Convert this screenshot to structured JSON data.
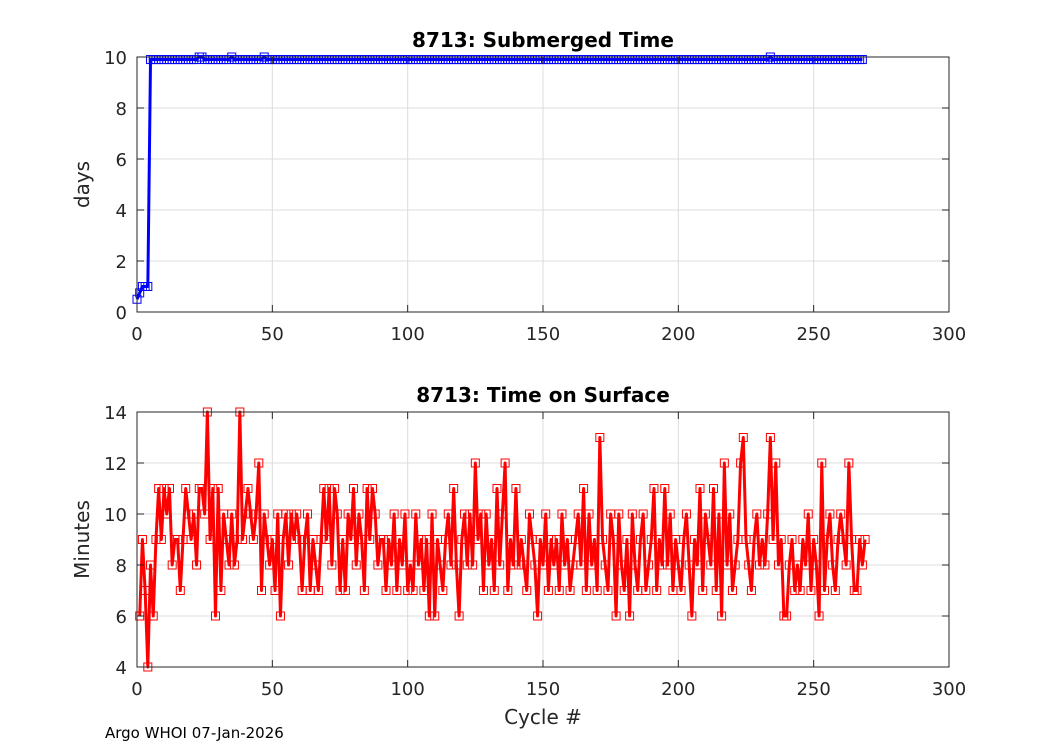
{
  "footer": "Argo WHOI 07-Jan-2026",
  "chart_data": [
    {
      "type": "line",
      "title": "8713: Submerged Time",
      "xlabel": "",
      "ylabel": "days",
      "xlim": [
        0,
        300
      ],
      "ylim": [
        0,
        10
      ],
      "xticks": [
        0,
        50,
        100,
        150,
        200,
        250,
        300
      ],
      "yticks": [
        0,
        2,
        4,
        6,
        8,
        10
      ],
      "grid": true,
      "color": "#0000ff",
      "marker": "square",
      "head_values": [
        0.5,
        0.75,
        1.0,
        1.0,
        1.0,
        9.9,
        9.9,
        9.9,
        9.9,
        9.9
      ],
      "tail_range": [
        10,
        268
      ],
      "tail_values": [
        9.9,
        9.9,
        9.9,
        9.9,
        9.9,
        9.9,
        9.9,
        9.9,
        9.9,
        9.9,
        9.9,
        9.9,
        9.9,
        10.0,
        10.0,
        9.9,
        9.9,
        9.9,
        9.9,
        9.9,
        9.9,
        9.9,
        9.9,
        9.9,
        9.9,
        10.0,
        9.9,
        9.9,
        9.9,
        9.9,
        9.9,
        9.9,
        9.9,
        9.9,
        9.9,
        9.9,
        9.9,
        10.0,
        9.9,
        9.9,
        9.9,
        9.9,
        9.9,
        9.9,
        9.9,
        9.9,
        9.9,
        9.9,
        9.9,
        9.9,
        9.9,
        9.9,
        9.9,
        9.9,
        9.9,
        9.9,
        9.9,
        9.9,
        9.9,
        9.9,
        9.9,
        9.9,
        9.9,
        9.9,
        9.9,
        9.9,
        9.9,
        9.9,
        9.9,
        9.9,
        9.9,
        9.9,
        9.9,
        9.9,
        9.9,
        9.9,
        9.9,
        9.9,
        9.9,
        9.9,
        9.9,
        9.9,
        9.9,
        9.9,
        9.9,
        9.9,
        9.9,
        9.9,
        9.9,
        9.9,
        9.9,
        9.9,
        9.9,
        9.9,
        9.9,
        9.9,
        9.9,
        9.9,
        9.9,
        9.9,
        9.9,
        9.9,
        9.9,
        9.9,
        9.9,
        9.9,
        9.9,
        9.9,
        9.9,
        9.9,
        9.9,
        9.9,
        9.9,
        9.9,
        9.9,
        9.9,
        9.9,
        9.9,
        9.9,
        9.9,
        9.9,
        9.9,
        9.9,
        9.9,
        9.9,
        9.9,
        9.9,
        9.9,
        9.9,
        9.9,
        9.9,
        9.9,
        9.9,
        9.9,
        9.9,
        9.9,
        9.9,
        9.9,
        9.9,
        9.9,
        9.9,
        9.9,
        9.9,
        9.9,
        9.9,
        9.9,
        9.9,
        9.9,
        9.9,
        9.9,
        9.9,
        9.9,
        9.9,
        9.9,
        9.9,
        9.9,
        9.9,
        9.9,
        9.9,
        9.9,
        9.9,
        9.9,
        9.9,
        9.9,
        9.9,
        9.9,
        9.9,
        9.9,
        9.9,
        9.9,
        9.9,
        9.9,
        9.9,
        9.9,
        9.9,
        9.9,
        9.9,
        9.9,
        9.9,
        9.9,
        9.9,
        9.9,
        9.9,
        9.9,
        9.9,
        9.9,
        9.9,
        9.9,
        9.9,
        9.9,
        9.9,
        9.9,
        9.9,
        9.9,
        9.9,
        9.9,
        9.9,
        9.9,
        9.9,
        9.9,
        9.9,
        9.9,
        9.9,
        9.9,
        9.9,
        9.9,
        9.9,
        9.9,
        9.9,
        9.9,
        9.9,
        9.9,
        9.9,
        9.9,
        9.9,
        9.9,
        9.9,
        9.9,
        9.9,
        9.9,
        9.9,
        9.9,
        9.9,
        9.9,
        10.0,
        9.9,
        9.9,
        9.9,
        9.9,
        9.9,
        9.9,
        9.9,
        9.9,
        9.9,
        9.9,
        9.9,
        9.9,
        9.9,
        9.9,
        9.9,
        9.9,
        9.9,
        9.9,
        9.9,
        9.9,
        9.9,
        9.9,
        9.9,
        9.9,
        9.9,
        9.9,
        9.9,
        9.9,
        9.9,
        9.9,
        9.9,
        9.9,
        9.9,
        9.9
      ]
    },
    {
      "type": "line",
      "title": "8713: Time on Surface",
      "xlabel": "Cycle #",
      "ylabel": "Minutes",
      "xlim": [
        0,
        300
      ],
      "ylim": [
        4,
        14
      ],
      "xticks": [
        0,
        50,
        100,
        150,
        200,
        250,
        300
      ],
      "yticks": [
        4,
        6,
        8,
        10,
        12,
        14
      ],
      "grid": true,
      "color": "#ff0000",
      "marker": "square",
      "x_start": 1,
      "values": [
        6,
        9,
        7,
        4,
        8,
        6,
        9,
        11,
        9,
        11,
        10,
        11,
        8,
        9,
        9,
        7,
        9,
        11,
        10,
        9,
        10,
        8,
        11,
        11,
        10,
        14,
        9,
        11,
        6,
        11,
        7,
        10,
        9,
        8,
        10,
        8,
        9,
        14,
        9,
        10,
        11,
        10,
        9,
        10,
        12,
        7,
        10,
        9,
        8,
        9,
        7,
        10,
        6,
        9,
        10,
        8,
        10,
        9,
        10,
        9,
        7,
        9,
        10,
        7,
        9,
        8,
        7,
        9,
        11,
        9,
        11,
        8,
        11,
        10,
        7,
        9,
        7,
        10,
        9,
        11,
        8,
        10,
        9,
        7,
        11,
        9,
        11,
        10,
        8,
        9,
        9,
        7,
        9,
        8,
        10,
        7,
        9,
        8,
        10,
        7,
        8,
        7,
        10,
        8,
        9,
        7,
        9,
        6,
        10,
        6,
        9,
        8,
        7,
        9,
        10,
        8,
        11,
        8,
        6,
        9,
        10,
        8,
        10,
        8,
        12,
        9,
        10,
        7,
        10,
        8,
        9,
        7,
        11,
        8,
        10,
        12,
        7,
        9,
        8,
        11,
        8,
        9,
        8,
        7,
        10,
        9,
        8,
        6,
        9,
        8,
        10,
        7,
        9,
        8,
        9,
        7,
        10,
        8,
        9,
        7,
        8,
        9,
        10,
        8,
        11,
        7,
        10,
        8,
        9,
        7,
        13,
        9,
        8,
        7,
        10,
        9,
        6,
        10,
        8,
        7,
        9,
        6,
        10,
        8,
        7,
        9,
        10,
        7,
        8,
        9,
        11,
        7,
        9,
        8,
        11,
        8,
        10,
        7,
        9,
        8,
        7,
        9,
        10,
        8,
        6,
        9,
        8,
        11,
        7,
        10,
        9,
        8,
        11,
        7,
        10,
        6,
        12,
        8,
        10,
        7,
        8,
        9,
        12,
        13,
        9,
        8,
        7,
        9,
        10,
        8,
        9,
        8,
        10,
        13,
        9,
        12,
        8,
        9,
        6,
        6,
        8,
        9,
        7,
        8,
        7,
        9,
        8,
        10,
        7,
        9,
        8,
        6,
        12,
        7,
        9,
        10,
        8,
        7,
        9,
        10,
        9,
        8,
        12,
        9,
        7,
        7,
        9,
        8,
        9
      ]
    }
  ]
}
